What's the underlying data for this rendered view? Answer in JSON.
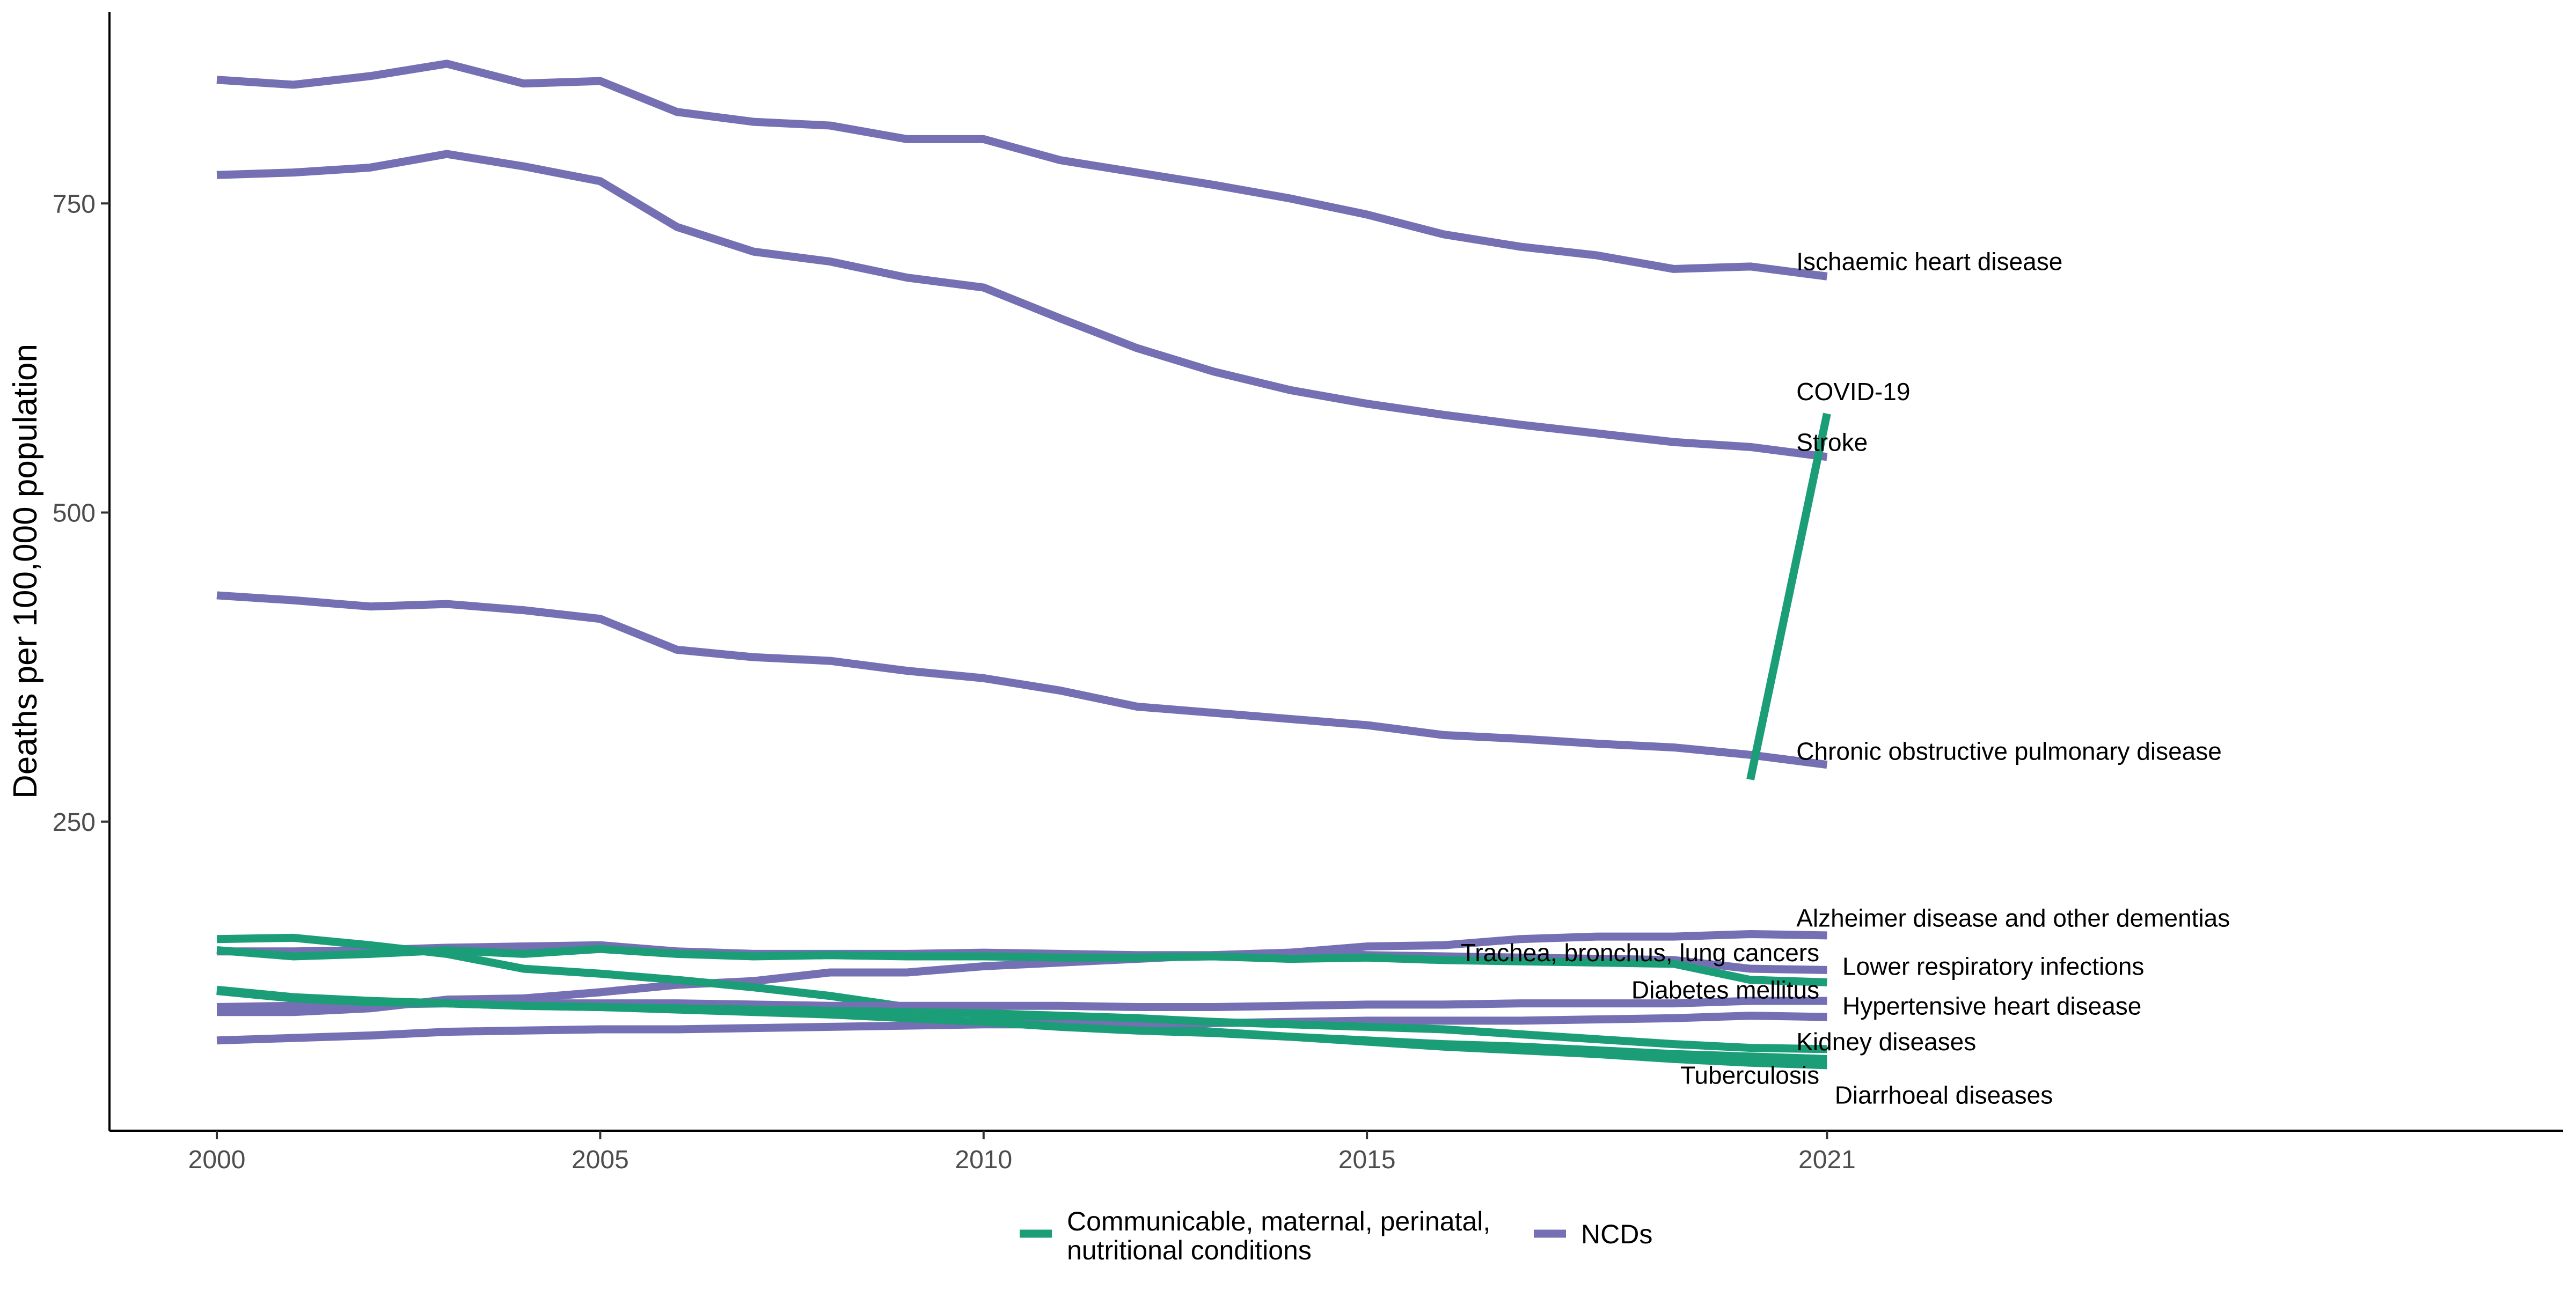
{
  "colors": {
    "communicable": "#1b9e77",
    "ncd": "#7570b3",
    "axis": "#000000",
    "tick_text": "#4d4d4d"
  },
  "legend": {
    "position": "bottom",
    "items": [
      {
        "group": "communicable",
        "label_lines": [
          "Communicable, maternal, perinatal,",
          "nutritional conditions"
        ]
      },
      {
        "group": "ncd",
        "label_lines": [
          "NCDs"
        ]
      }
    ]
  },
  "chart_data": {
    "type": "line",
    "title": "",
    "xlabel": "",
    "ylabel": "Deaths per 100,000 population",
    "xlim": [
      1998.6,
      2030.6
    ],
    "ylim": [
      0,
      905
    ],
    "x_ticks": [
      2000,
      2005,
      2010,
      2015,
      2021
    ],
    "y_ticks": [
      250,
      500,
      750
    ],
    "grid": false,
    "x": [
      2000,
      2001,
      2002,
      2003,
      2004,
      2005,
      2006,
      2007,
      2008,
      2009,
      2010,
      2011,
      2012,
      2013,
      2014,
      2015,
      2016,
      2017,
      2018,
      2019,
      2020,
      2021
    ],
    "series": [
      {
        "name": "Ischaemic heart disease",
        "group": "ncd",
        "values": [
          850,
          846,
          853,
          863,
          847,
          849,
          824,
          816,
          813,
          802,
          802,
          785,
          775,
          765,
          754,
          741,
          725,
          715,
          708,
          697,
          699,
          691
        ]
      },
      {
        "name": "Stroke",
        "group": "ncd",
        "values": [
          773,
          775,
          779,
          790,
          780,
          768,
          731,
          711,
          703,
          690,
          682,
          657,
          633,
          614,
          599,
          588,
          579,
          571,
          564,
          557,
          553,
          545
        ]
      },
      {
        "name": "Chronic obstructive pulmonary disease",
        "group": "ncd",
        "values": [
          433,
          429,
          424,
          426,
          421,
          414,
          389,
          383,
          380,
          372,
          366,
          356,
          343,
          338,
          333,
          328,
          320,
          317,
          313,
          310,
          304,
          296
        ]
      },
      {
        "name": "Alzheimer disease and other dementias",
        "group": "ncd",
        "values": [
          145,
          145,
          146,
          148,
          149,
          150,
          145,
          143,
          143,
          143,
          144,
          143,
          142,
          142,
          144,
          149,
          150,
          155,
          157,
          157,
          159,
          158
        ]
      },
      {
        "name": "Trachea, bronchus, lung cancers",
        "group": "ncd",
        "values": [
          96,
          96,
          99,
          106,
          107,
          112,
          118,
          121,
          128,
          128,
          133,
          136,
          139,
          142,
          144,
          142,
          141,
          140,
          139,
          138,
          131,
          130
        ]
      },
      {
        "name": "Lower respiratory infections",
        "group": "communicable",
        "values": [
          155,
          156,
          150,
          143,
          131,
          127,
          122,
          116,
          109,
          100,
          94,
          89,
          85,
          80,
          76,
          72,
          68,
          65,
          62,
          58,
          55,
          53
        ]
      },
      {
        "name": "Diabetes mellitus",
        "group": "ncd",
        "values": [
          100,
          101,
          102,
          103,
          103,
          103,
          103,
          102,
          101,
          101,
          101,
          101,
          100,
          100,
          101,
          102,
          102,
          103,
          103,
          103,
          105,
          105
        ]
      },
      {
        "name": "Hypertensive heart disease",
        "group": "ncd",
        "values": [
          73,
          75,
          77,
          80,
          81,
          82,
          82,
          83,
          84,
          85,
          86,
          86,
          87,
          87,
          88,
          89,
          89,
          89,
          90,
          91,
          93,
          92
        ]
      },
      {
        "name": "Kidney diseases",
        "group": "communicable",
        "values": [
          146,
          141,
          143,
          146,
          143,
          147,
          143,
          141,
          142,
          141,
          141,
          140,
          140,
          141,
          139,
          140,
          138,
          137,
          136,
          135,
          122,
          120
        ]
      },
      {
        "name": "Tuberculosis",
        "group": "communicable",
        "values": [
          113,
          107,
          104,
          103,
          101,
          100,
          98,
          96,
          94,
          91,
          88,
          84,
          81,
          79,
          76,
          73,
          70,
          68,
          65,
          62,
          60,
          58
        ]
      },
      {
        "name": "Diarrhoeal diseases",
        "group": "communicable",
        "values": [
          114,
          108,
          105,
          103,
          101,
          100,
          99,
          98,
          97,
          96,
          95,
          93,
          91,
          88,
          86,
          84,
          82,
          78,
          74,
          70,
          67,
          66
        ]
      },
      {
        "name": "COVID-19",
        "group": "communicable",
        "x": [
          2020,
          2021
        ],
        "values": [
          284,
          580
        ]
      }
    ],
    "line_labels": [
      {
        "text": "Ischaemic heart disease",
        "x": 2020.6,
        "y": 696
      },
      {
        "text": "COVID-19",
        "x": 2020.6,
        "y": 591
      },
      {
        "text": "Stroke",
        "x": 2020.6,
        "y": 550
      },
      {
        "text": "Chronic obstructive pulmonary disease",
        "x": 2020.6,
        "y": 300
      },
      {
        "text": "Alzheimer disease and other dementias",
        "x": 2020.6,
        "y": 165
      },
      {
        "text": "Trachea, bronchus, lung cancers",
        "x": 2020.9,
        "y": 137,
        "anchor": "end"
      },
      {
        "text": "Lower respiratory infections",
        "x": 2021.2,
        "y": 126
      },
      {
        "text": "Diabetes mellitus",
        "x": 2020.9,
        "y": 107,
        "anchor": "end"
      },
      {
        "text": "Hypertensive heart disease",
        "x": 2021.2,
        "y": 94
      },
      {
        "text": "Kidney diseases",
        "x": 2020.6,
        "y": 65
      },
      {
        "text": "Tuberculosis",
        "x": 2020.9,
        "y": 38,
        "anchor": "end"
      },
      {
        "text": "Diarrhoeal diseases",
        "x": 2021.1,
        "y": 22
      }
    ]
  }
}
